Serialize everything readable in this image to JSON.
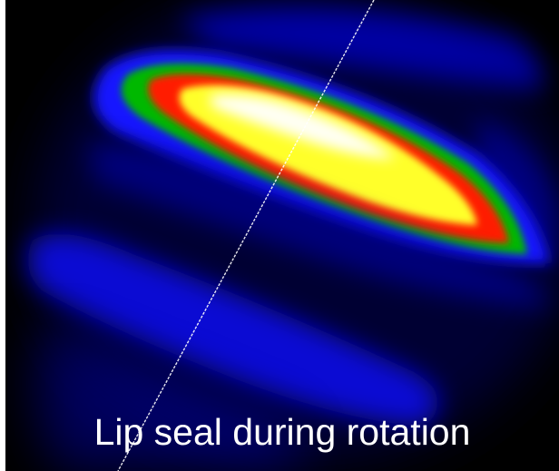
{
  "image": {
    "caption": "Lip seal during rotation",
    "colors": {
      "background": "#000000",
      "dark_blue": "#00004a",
      "blue": "#1010ff",
      "green": "#00b400",
      "red": "#ff1a00",
      "yellow": "#ffff30",
      "white": "#ffffff",
      "caption_text": "#ffffff"
    }
  }
}
